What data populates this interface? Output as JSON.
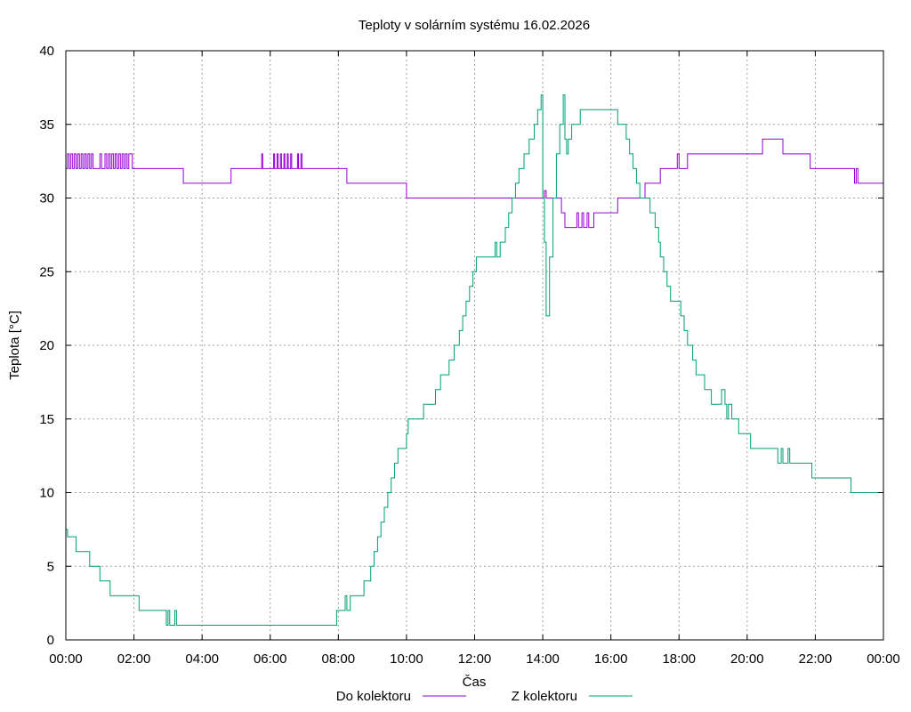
{
  "chart_data": {
    "type": "line",
    "title": "Teploty v solárním systému 16.02.2026",
    "xlabel": "Čas",
    "ylabel": "Teplota [°C]",
    "xlim": [
      0,
      24
    ],
    "ylim": [
      0,
      40
    ],
    "grid": true,
    "legend_position": "bottom",
    "x_ticks": [
      0,
      2,
      4,
      6,
      8,
      10,
      12,
      14,
      16,
      18,
      20,
      22,
      24
    ],
    "x_tick_labels": [
      "00:00",
      "02:00",
      "04:00",
      "06:00",
      "08:00",
      "10:00",
      "12:00",
      "14:00",
      "16:00",
      "18:00",
      "20:00",
      "22:00",
      "00:00"
    ],
    "y_ticks": [
      0,
      5,
      10,
      15,
      20,
      25,
      30,
      35,
      40
    ],
    "y_tick_labels": [
      "0",
      "5",
      "10",
      "15",
      "20",
      "25",
      "30",
      "35",
      "40"
    ],
    "series": [
      {
        "name": "Do kolektoru",
        "color": "#9400d3",
        "step": true,
        "points": [
          [
            0.0,
            32
          ],
          [
            0.05,
            33
          ],
          [
            0.1,
            32
          ],
          [
            0.15,
            33
          ],
          [
            0.2,
            32
          ],
          [
            0.25,
            33
          ],
          [
            0.3,
            32
          ],
          [
            0.35,
            33
          ],
          [
            0.4,
            32
          ],
          [
            0.45,
            33
          ],
          [
            0.5,
            32
          ],
          [
            0.55,
            33
          ],
          [
            0.6,
            32
          ],
          [
            0.65,
            33
          ],
          [
            0.7,
            32
          ],
          [
            0.75,
            33
          ],
          [
            0.8,
            32
          ],
          [
            1.0,
            33
          ],
          [
            1.05,
            32
          ],
          [
            1.15,
            33
          ],
          [
            1.2,
            32
          ],
          [
            1.25,
            33
          ],
          [
            1.3,
            32
          ],
          [
            1.35,
            33
          ],
          [
            1.4,
            32
          ],
          [
            1.45,
            33
          ],
          [
            1.5,
            32
          ],
          [
            1.55,
            33
          ],
          [
            1.6,
            32
          ],
          [
            1.65,
            33
          ],
          [
            1.7,
            32
          ],
          [
            1.75,
            33
          ],
          [
            1.8,
            32
          ],
          [
            1.85,
            33
          ],
          [
            1.95,
            32
          ],
          [
            3.45,
            31
          ],
          [
            4.85,
            32
          ],
          [
            5.75,
            33
          ],
          [
            5.78,
            32
          ],
          [
            6.1,
            33
          ],
          [
            6.13,
            32
          ],
          [
            6.2,
            33
          ],
          [
            6.23,
            32
          ],
          [
            6.3,
            33
          ],
          [
            6.33,
            32
          ],
          [
            6.4,
            33
          ],
          [
            6.43,
            32
          ],
          [
            6.5,
            33
          ],
          [
            6.53,
            32
          ],
          [
            6.6,
            33
          ],
          [
            6.63,
            32
          ],
          [
            6.8,
            33
          ],
          [
            6.83,
            32
          ],
          [
            6.9,
            33
          ],
          [
            6.93,
            32
          ],
          [
            8.25,
            31
          ],
          [
            10.0,
            30
          ],
          [
            14.05,
            30.5
          ],
          [
            14.1,
            30
          ],
          [
            14.55,
            29
          ],
          [
            14.65,
            28
          ],
          [
            15.0,
            29
          ],
          [
            15.05,
            28
          ],
          [
            15.15,
            29
          ],
          [
            15.2,
            28
          ],
          [
            15.3,
            29
          ],
          [
            15.35,
            28
          ],
          [
            15.5,
            29
          ],
          [
            16.2,
            30
          ],
          [
            17.0,
            31
          ],
          [
            17.45,
            32
          ],
          [
            17.95,
            33
          ],
          [
            18.0,
            32
          ],
          [
            18.25,
            33
          ],
          [
            20.45,
            34
          ],
          [
            21.05,
            33
          ],
          [
            21.85,
            32
          ],
          [
            23.15,
            31
          ],
          [
            23.2,
            32
          ],
          [
            23.25,
            31
          ],
          [
            24.0,
            31
          ]
        ]
      },
      {
        "name": "Z kolektoru",
        "color": "#009e73",
        "step": true,
        "points": [
          [
            0.0,
            7.5
          ],
          [
            0.05,
            7
          ],
          [
            0.3,
            6
          ],
          [
            0.7,
            5
          ],
          [
            1.0,
            4
          ],
          [
            1.3,
            3
          ],
          [
            2.15,
            2
          ],
          [
            2.95,
            1
          ],
          [
            3.0,
            2
          ],
          [
            3.05,
            1
          ],
          [
            3.2,
            2
          ],
          [
            3.25,
            1
          ],
          [
            7.95,
            2
          ],
          [
            8.2,
            3
          ],
          [
            8.25,
            2
          ],
          [
            8.35,
            3
          ],
          [
            8.75,
            4
          ],
          [
            8.95,
            5
          ],
          [
            9.05,
            6
          ],
          [
            9.15,
            7
          ],
          [
            9.25,
            8
          ],
          [
            9.35,
            9
          ],
          [
            9.45,
            10
          ],
          [
            9.55,
            11
          ],
          [
            9.65,
            12
          ],
          [
            9.75,
            13
          ],
          [
            10.0,
            14
          ],
          [
            10.05,
            15
          ],
          [
            10.5,
            16
          ],
          [
            10.85,
            17
          ],
          [
            11.0,
            18
          ],
          [
            11.25,
            19
          ],
          [
            11.4,
            20
          ],
          [
            11.55,
            21
          ],
          [
            11.65,
            22
          ],
          [
            11.75,
            23
          ],
          [
            11.85,
            24
          ],
          [
            11.95,
            25
          ],
          [
            12.05,
            26
          ],
          [
            12.6,
            27
          ],
          [
            12.65,
            26
          ],
          [
            12.75,
            27
          ],
          [
            12.9,
            28
          ],
          [
            13.0,
            29
          ],
          [
            13.1,
            30
          ],
          [
            13.2,
            31
          ],
          [
            13.3,
            32
          ],
          [
            13.45,
            33
          ],
          [
            13.6,
            34
          ],
          [
            13.75,
            35
          ],
          [
            13.85,
            36
          ],
          [
            13.95,
            37
          ],
          [
            14.0,
            30
          ],
          [
            14.05,
            27
          ],
          [
            14.1,
            22
          ],
          [
            14.2,
            26
          ],
          [
            14.3,
            30
          ],
          [
            14.4,
            33
          ],
          [
            14.5,
            35
          ],
          [
            14.6,
            37
          ],
          [
            14.65,
            34
          ],
          [
            14.7,
            33
          ],
          [
            14.75,
            34
          ],
          [
            14.85,
            35
          ],
          [
            15.1,
            36
          ],
          [
            16.2,
            35
          ],
          [
            16.45,
            34
          ],
          [
            16.55,
            33
          ],
          [
            16.65,
            32
          ],
          [
            16.75,
            31
          ],
          [
            16.85,
            30
          ],
          [
            17.15,
            29
          ],
          [
            17.3,
            28
          ],
          [
            17.4,
            27
          ],
          [
            17.45,
            26
          ],
          [
            17.55,
            25
          ],
          [
            17.65,
            24
          ],
          [
            17.75,
            23
          ],
          [
            18.05,
            22
          ],
          [
            18.15,
            21
          ],
          [
            18.25,
            20
          ],
          [
            18.4,
            19
          ],
          [
            18.5,
            18
          ],
          [
            18.75,
            17
          ],
          [
            18.95,
            16
          ],
          [
            19.25,
            17
          ],
          [
            19.35,
            16
          ],
          [
            19.4,
            15
          ],
          [
            19.45,
            16
          ],
          [
            19.55,
            15
          ],
          [
            19.75,
            14
          ],
          [
            20.1,
            13
          ],
          [
            20.9,
            12
          ],
          [
            21.0,
            13
          ],
          [
            21.05,
            12
          ],
          [
            21.2,
            13
          ],
          [
            21.25,
            12
          ],
          [
            21.9,
            11
          ],
          [
            23.05,
            10
          ],
          [
            24.0,
            10
          ]
        ]
      }
    ]
  }
}
